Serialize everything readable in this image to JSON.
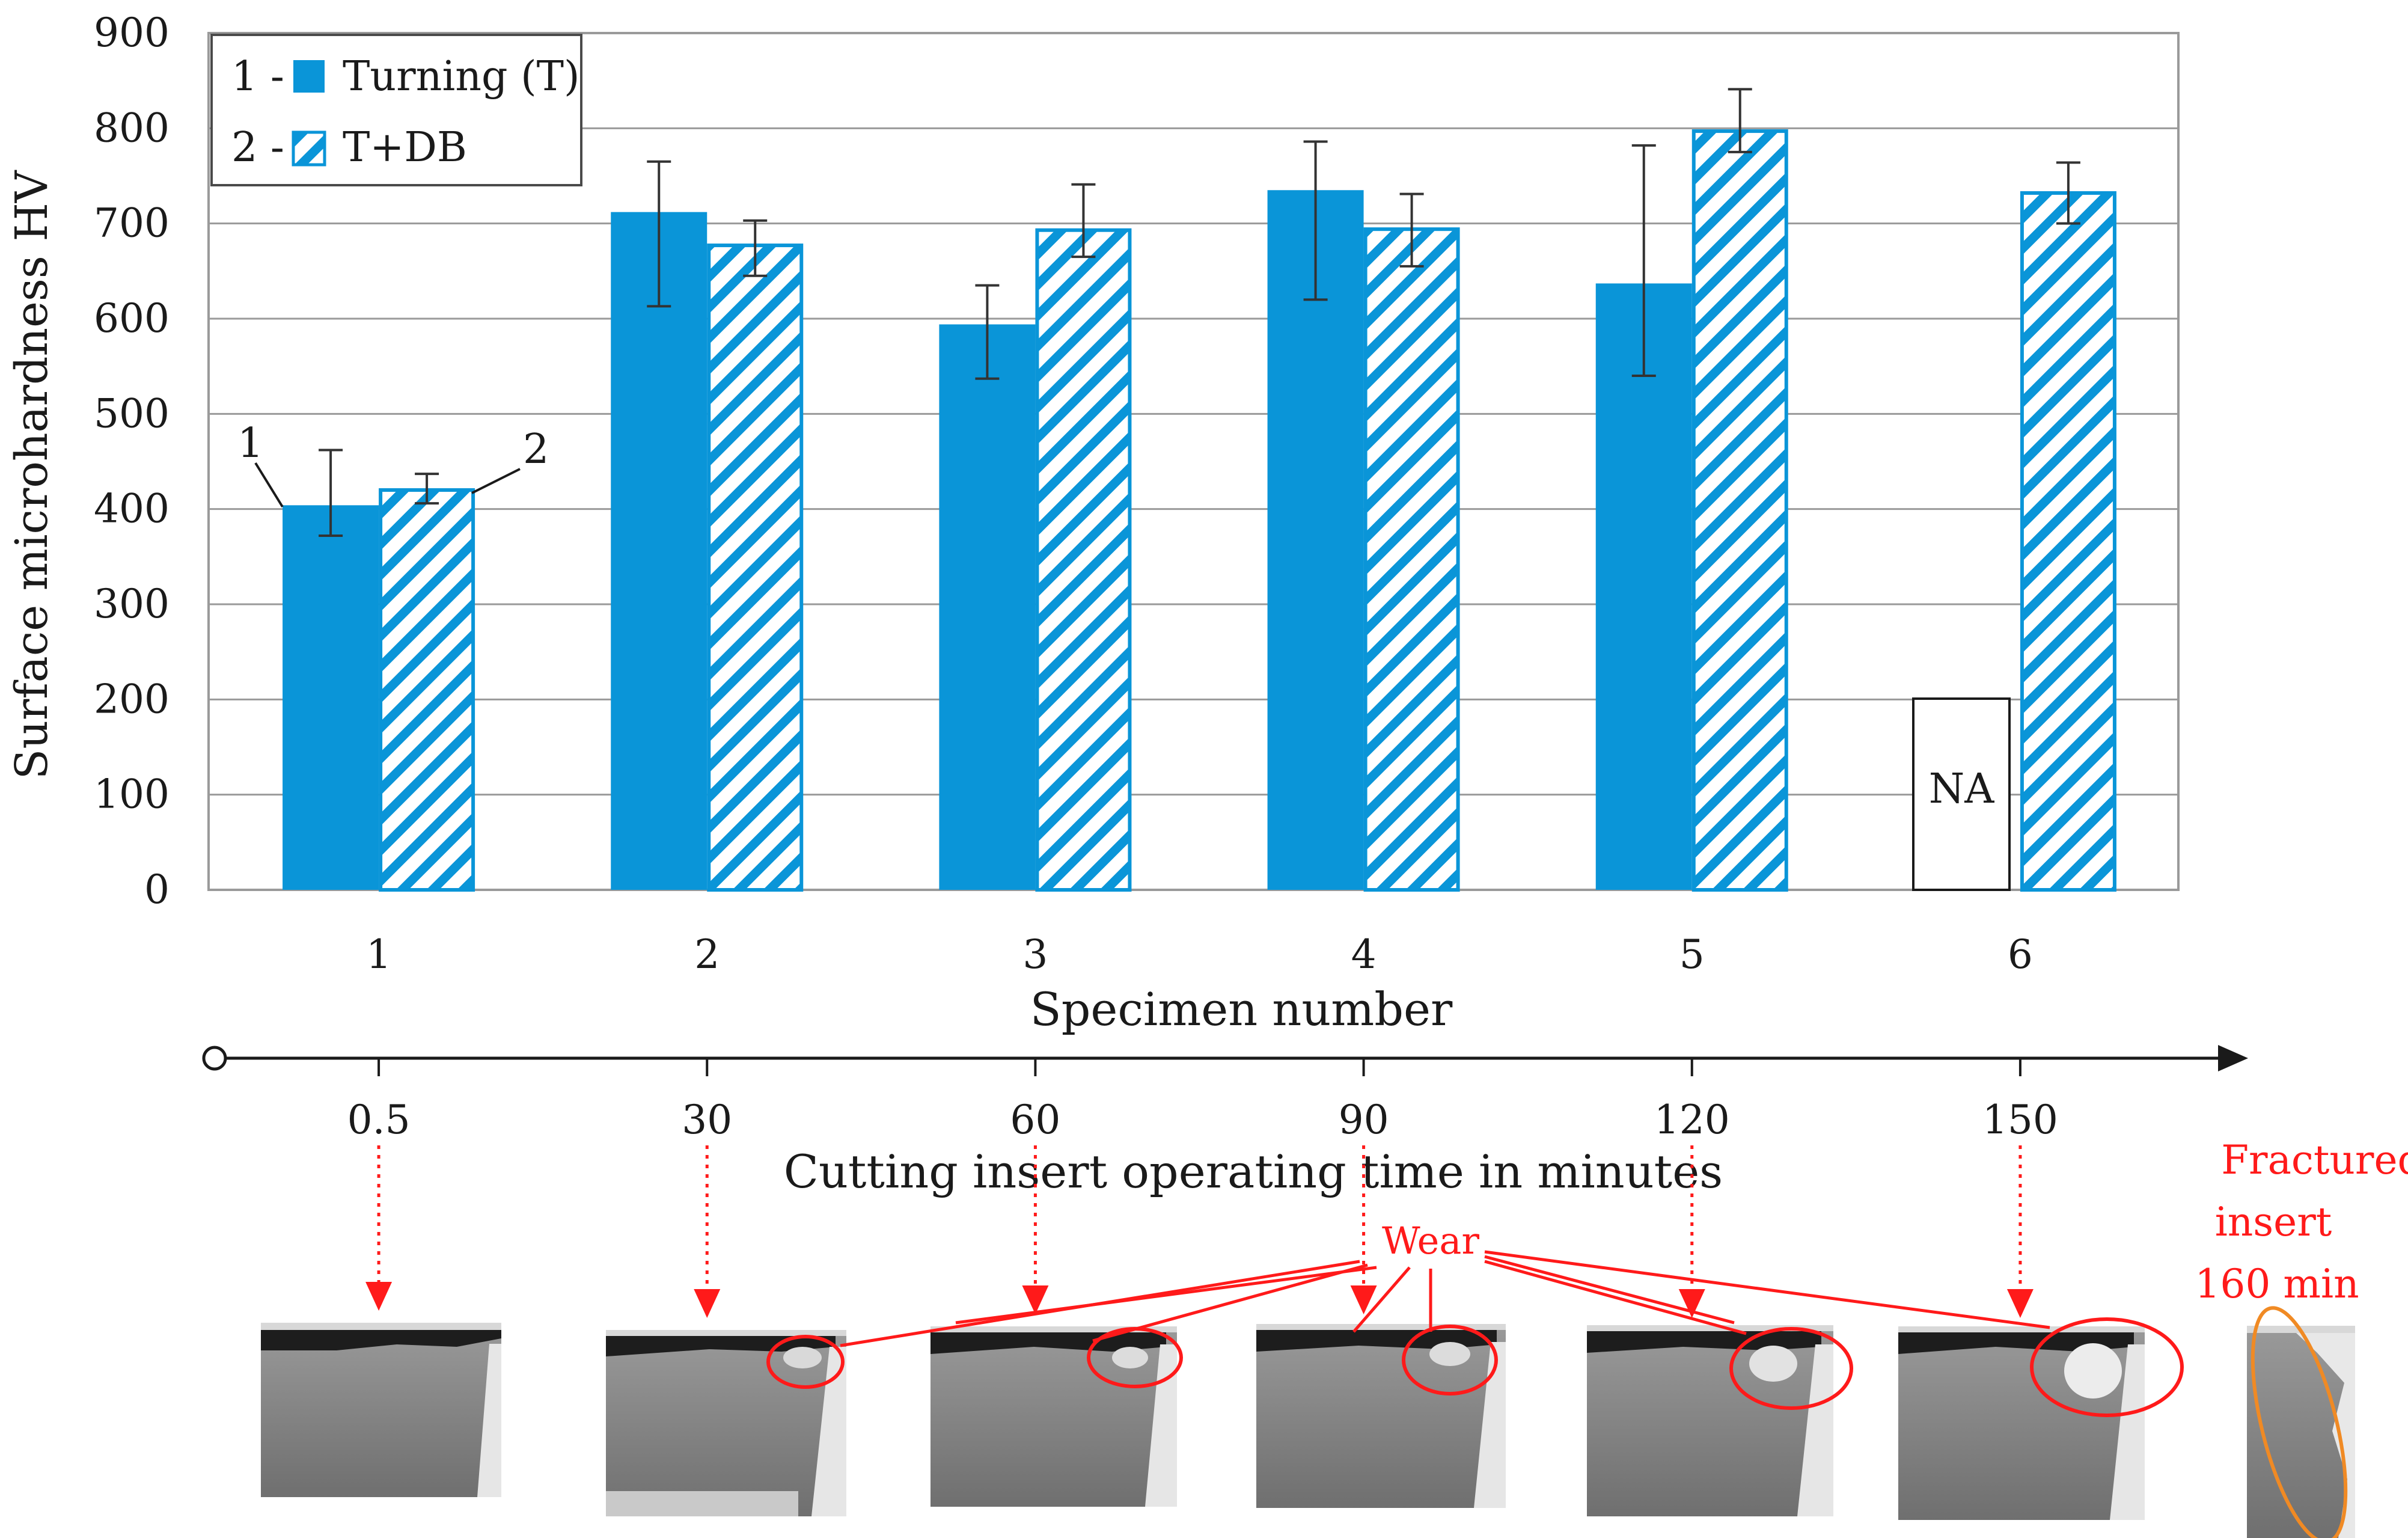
{
  "colors": {
    "turning": "#0a95d8",
    "hatch_stroke": "#0a95d8",
    "hatch_bg": "#ffffff",
    "annotation": "#ff1a1a",
    "fracture_outline": "#f08a24",
    "grid": "#9a9a9a",
    "text": "#1a1a1a"
  },
  "chart_data": {
    "type": "bar",
    "title": "",
    "xlabel": "Specimen number",
    "ylabel": "Surface microhardness HV",
    "categories": [
      "1",
      "2",
      "3",
      "4",
      "5",
      "6"
    ],
    "ylim": [
      0,
      900
    ],
    "yticks": [
      0,
      100,
      200,
      300,
      400,
      500,
      600,
      700,
      800,
      900
    ],
    "grid": true,
    "legend_position": "top-left",
    "series": [
      {
        "name": "Turning (T)",
        "legend_label": "1 - ",
        "style": "solid",
        "values": [
          404,
          712,
          594,
          735,
          637,
          null
        ],
        "err_low": [
          372,
          613,
          537,
          620,
          540,
          null
        ],
        "err_high": [
          462,
          765,
          635,
          786,
          782,
          null
        ]
      },
      {
        "name": "T+DB",
        "legend_label": "2 - ",
        "style": "hatched",
        "values": [
          420,
          677,
          693,
          694,
          797,
          732
        ],
        "err_low": [
          406,
          645,
          665,
          655,
          775,
          700
        ],
        "err_high": [
          437,
          703,
          741,
          731,
          841,
          764
        ]
      }
    ],
    "na_label": "NA",
    "na_note_value": 200,
    "bar_annotations": [
      "1",
      "2"
    ]
  },
  "timeline": {
    "label": "Cutting insert operating time in minutes",
    "ticks": [
      "0.5",
      "30",
      "60",
      "90",
      "120",
      "150"
    ]
  },
  "annotations": {
    "wear": "Wear",
    "fracture_line1": "Fractured",
    "fracture_line2": "insert",
    "fracture_line3": "160 min"
  }
}
